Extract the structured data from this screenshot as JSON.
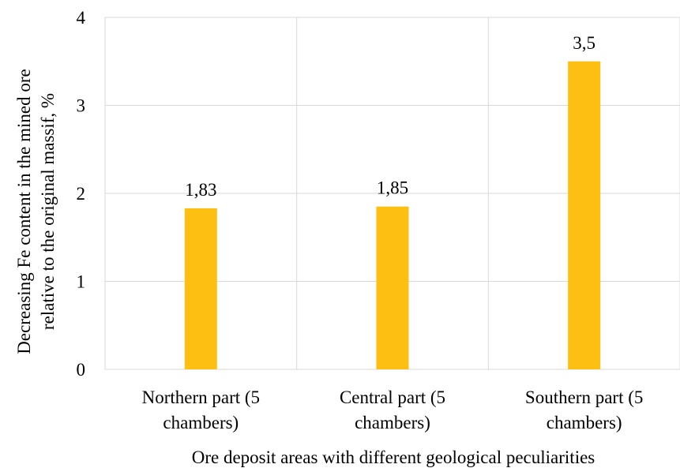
{
  "chart_data": {
    "type": "bar",
    "categories": [
      [
        "Northern part (5",
        "chambers)"
      ],
      [
        "Central part (5",
        "chambers)"
      ],
      [
        "Southern part (5",
        "chambers)"
      ]
    ],
    "values": [
      1.83,
      1.85,
      3.5
    ],
    "data_labels": [
      "1,83",
      "1,85",
      "3,5"
    ],
    "y_ticks": [
      0,
      1,
      2,
      3,
      4
    ],
    "ylim": [
      0,
      4
    ],
    "xlabel": "Ore deposit areas with different geological peculiarities",
    "ylabel": [
      "Decreasing Fe content in the mined ore",
      "relative to the original massif, %"
    ],
    "bar_color": "#fdbf11",
    "grid": true,
    "legend": "none"
  }
}
